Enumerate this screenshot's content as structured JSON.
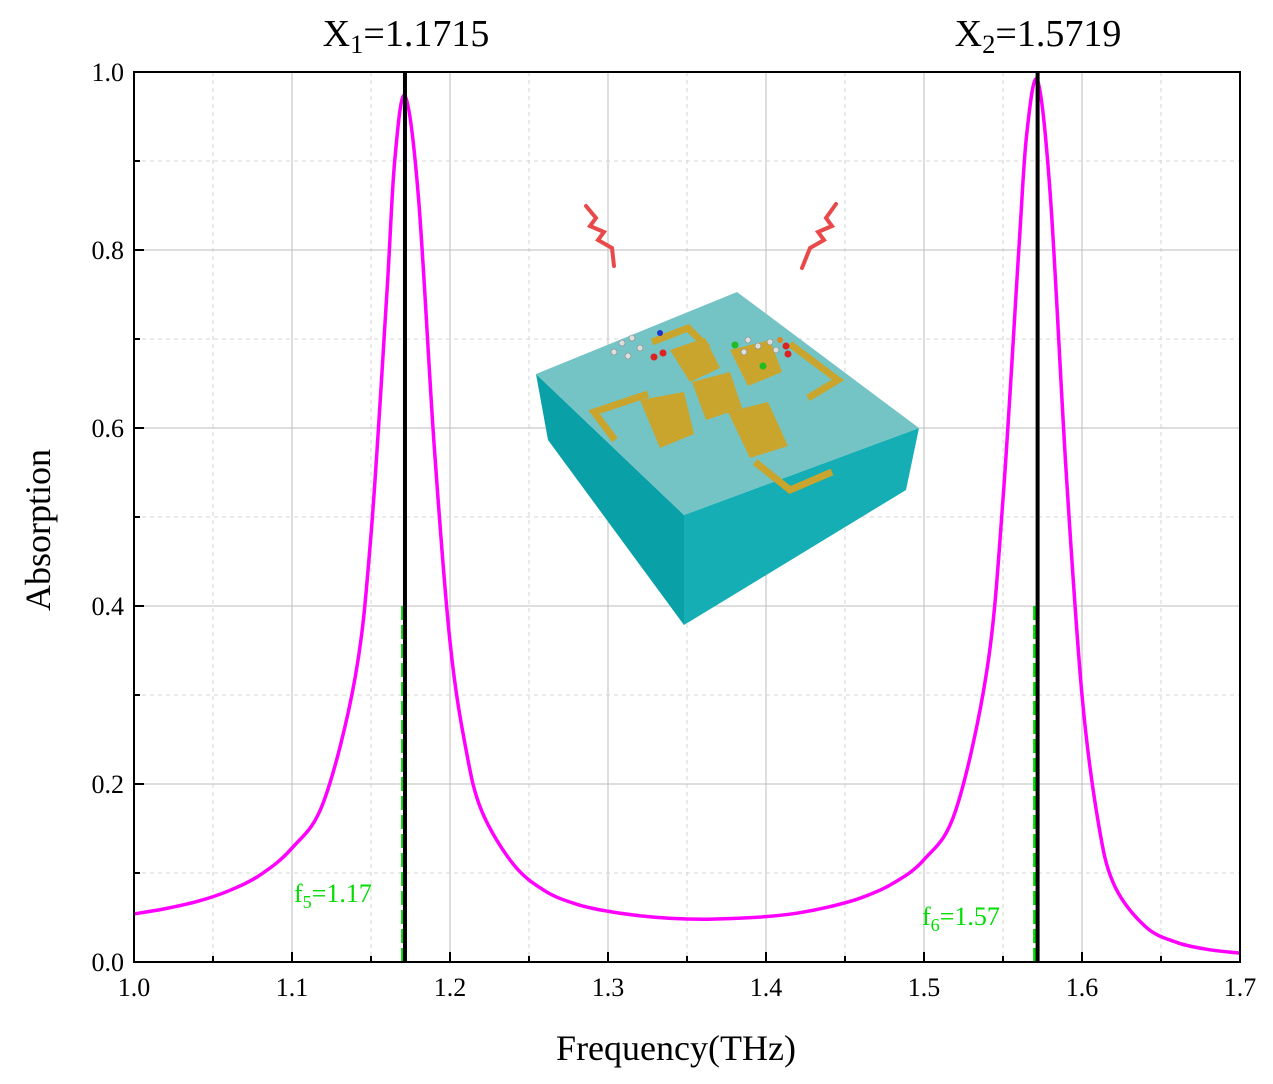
{
  "chart_data": {
    "type": "line",
    "xlabel": "Frequency(THz)",
    "ylabel": "Absorption",
    "xlim": [
      1.0,
      1.7
    ],
    "ylim": [
      0.0,
      1.0
    ],
    "xticks": [
      "1.0",
      "1.1",
      "1.2",
      "1.3",
      "1.4",
      "1.5",
      "1.6",
      "1.7"
    ],
    "yticks": [
      "0.0",
      "0.2",
      "0.4",
      "0.6",
      "0.8",
      "1.0"
    ],
    "grid": true,
    "series": [
      {
        "name": "Absorption",
        "color": "#ff00ff",
        "x": [
          1.0,
          1.02,
          1.04,
          1.06,
          1.08,
          1.1,
          1.12,
          1.14,
          1.15,
          1.16,
          1.165,
          1.1715,
          1.18,
          1.19,
          1.2,
          1.21,
          1.22,
          1.24,
          1.26,
          1.28,
          1.3,
          1.32,
          1.34,
          1.36,
          1.38,
          1.4,
          1.42,
          1.44,
          1.46,
          1.48,
          1.5,
          1.52,
          1.54,
          1.55,
          1.56,
          1.565,
          1.5719,
          1.58,
          1.59,
          1.6,
          1.61,
          1.62,
          1.64,
          1.66,
          1.68,
          1.7
        ],
        "y": [
          0.054,
          0.06,
          0.068,
          0.08,
          0.098,
          0.128,
          0.18,
          0.32,
          0.48,
          0.75,
          0.9,
          0.973,
          0.86,
          0.58,
          0.36,
          0.24,
          0.17,
          0.11,
          0.08,
          0.065,
          0.057,
          0.052,
          0.049,
          0.048,
          0.049,
          0.051,
          0.055,
          0.062,
          0.072,
          0.088,
          0.115,
          0.17,
          0.33,
          0.52,
          0.8,
          0.93,
          0.99,
          0.86,
          0.55,
          0.3,
          0.16,
          0.088,
          0.04,
          0.022,
          0.014,
          0.01
        ]
      }
    ],
    "markers": [
      {
        "name": "X1",
        "sub": "1",
        "prefix": "X",
        "value_text": "=1.1715",
        "x": 1.1715,
        "color": "#000000"
      },
      {
        "name": "X2",
        "sub": "2",
        "prefix": "X",
        "value_text": "=1.5719",
        "x": 1.5719,
        "color": "#000000"
      }
    ],
    "annotations": [
      {
        "prefix": "f",
        "sub": "5",
        "value_text": "=1.17",
        "x": 1.17,
        "y_top": 0.4,
        "color": "#00dd00"
      },
      {
        "prefix": "f",
        "sub": "6",
        "value_text": "=1.57",
        "x": 1.57,
        "y_top": 0.4,
        "color": "#00dd00"
      }
    ],
    "inset": "metamaterial-absorber-unit-cell"
  },
  "colors": {
    "curve": "#ff00ff",
    "marker": "#000000",
    "annotation": "#00dd00",
    "substrate_top": "#74c4c6",
    "substrate_side_left": "#0aa0a8",
    "substrate_side_right": "#14aeb4",
    "gold": "#c9a52d"
  }
}
